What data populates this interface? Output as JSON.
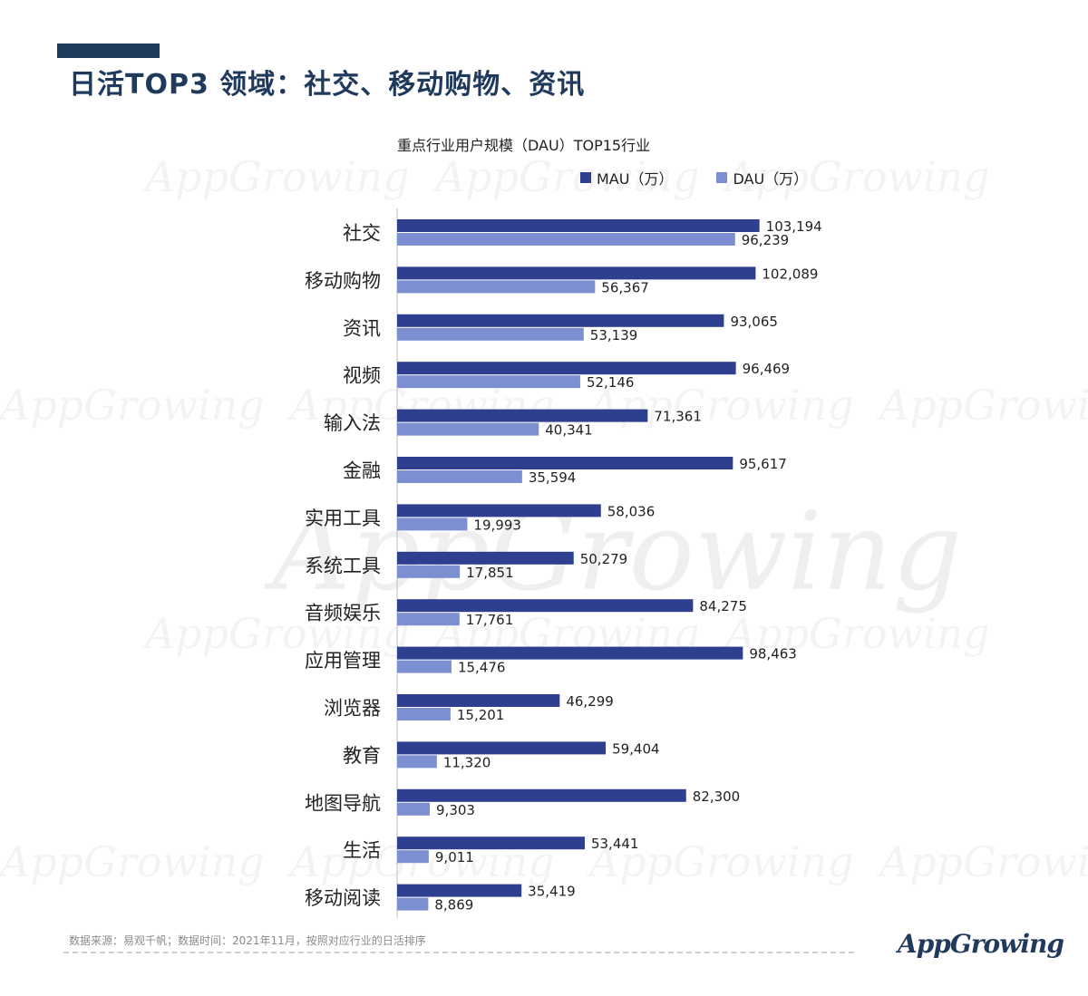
{
  "page": {
    "title": "日活TOP3 领域：社交、移动购物、资讯",
    "watermark": "AppGrowing",
    "footer_note": "数据来源：易观千帆；数据时间：2021年11月，按照对应行业的日活排序",
    "logo_text": "AppGrowing"
  },
  "colors": {
    "title": "#1f3a5c",
    "mau": "#2e3f8f",
    "dau": "#7b8fd1"
  },
  "chart_data": {
    "type": "bar",
    "orientation": "horizontal",
    "title": "重点行业用户规模（DAU）TOP15行业",
    "legend_position": "top",
    "grid": false,
    "xlim": [
      0,
      110000
    ],
    "categories": [
      "社交",
      "移动购物",
      "资讯",
      "视频",
      "输入法",
      "金融",
      "实用工具",
      "系统工具",
      "音频娱乐",
      "应用管理",
      "浏览器",
      "教育",
      "地图导航",
      "生活",
      "移动阅读"
    ],
    "series": [
      {
        "name": "MAU（万）",
        "values": [
          103194,
          102089,
          93065,
          96469,
          71361,
          95617,
          58036,
          50279,
          84275,
          98463,
          46299,
          59404,
          82300,
          53441,
          35419
        ],
        "labels": [
          "103,194",
          "102,089",
          "93,065",
          "96,469",
          "71,361",
          "95,617",
          "58,036",
          "50,279",
          "84,275",
          "98,463",
          "46,299",
          "59,404",
          "82,300",
          "53,441",
          "35,419"
        ]
      },
      {
        "name": "DAU（万）",
        "values": [
          96239,
          56367,
          53139,
          52146,
          40341,
          35594,
          19993,
          17851,
          17761,
          15476,
          15201,
          11320,
          9303,
          9011,
          8869
        ],
        "labels": [
          "96,239",
          "56,367",
          "53,139",
          "52,146",
          "40,341",
          "35,594",
          "19,993",
          "17,851",
          "17,761",
          "15,476",
          "15,201",
          "11,320",
          "9,303",
          "9,011",
          "8,869"
        ]
      }
    ]
  }
}
